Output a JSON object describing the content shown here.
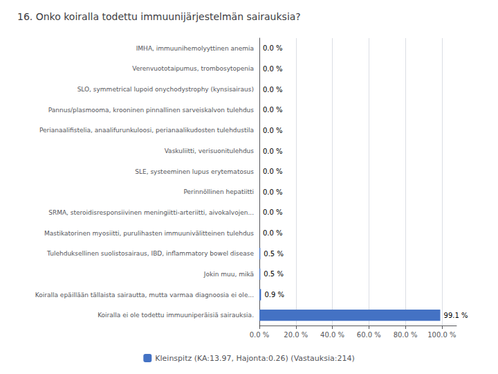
{
  "chart_data": {
    "type": "bar",
    "orientation": "horizontal",
    "title": "16. Onko koiralla todettu immuunijärjestelmän sairauksia?",
    "categories": [
      "IMHA, immuunihemolyyttinen anemia",
      "Verenvuototaipumus, trombosytopenia",
      "SLO, symmetrical lupoid onychodystrophy (kynsisairaus)",
      "Pannus/plasmooma, krooninen pinnallinen sarveiskalvon tulehdus",
      "Perianaalifistelia, anaalifurunkuloosi, perianaalikudosten tulehdustila",
      "Vaskuliitti, verisuonitulehdus",
      "SLE, systeeminen lupus erytematosus",
      "Perinnöllinen hepatiitti",
      "SRMA, steroidisresponsiivinen meningiitti-arteriitti, aivokalvojen...",
      "Mastikatorinen myosiitti, purulihasten immuunivälitteinen tulehdus",
      "Tulehduksellinen suolistosairaus, IBD, inflammatory bowel disease",
      "Jokin muu, mikä",
      "Koiralla epäillään tällaista sairautta, mutta varmaa diagnoosia ei ole...",
      "Koiralla ei ole todettu immuuniperäisiä sairauksia."
    ],
    "series": [
      {
        "name": "Kleinspitz (KA:13.97, Hajonta:0.26) (Vastauksia:214)",
        "color": "#4472C4",
        "values": [
          0.0,
          0.0,
          0.0,
          0.0,
          0.0,
          0.0,
          0.0,
          0.0,
          0.0,
          0.0,
          0.5,
          0.5,
          0.9,
          99.1
        ],
        "value_labels": [
          "0.0 %",
          "0.0 %",
          "0.0 %",
          "0.0 %",
          "0.0 %",
          "0.0 %",
          "0.0 %",
          "0.0 %",
          "0.0 %",
          "0.0 %",
          "0.5 %",
          "0.5 %",
          "0.9 %",
          "99.1 %"
        ]
      }
    ],
    "xlim": [
      0,
      108
    ],
    "xticks": [
      {
        "value": 0,
        "label": "0.0 %"
      },
      {
        "value": 20,
        "label": "20.0 %"
      },
      {
        "value": 40,
        "label": "40.0 %"
      },
      {
        "value": 60,
        "label": "60.0 %"
      },
      {
        "value": 80,
        "label": "80.0 %"
      },
      {
        "value": 100,
        "label": "100.0 %"
      }
    ],
    "grid": true,
    "legend": "bottom",
    "data_labels": true
  }
}
